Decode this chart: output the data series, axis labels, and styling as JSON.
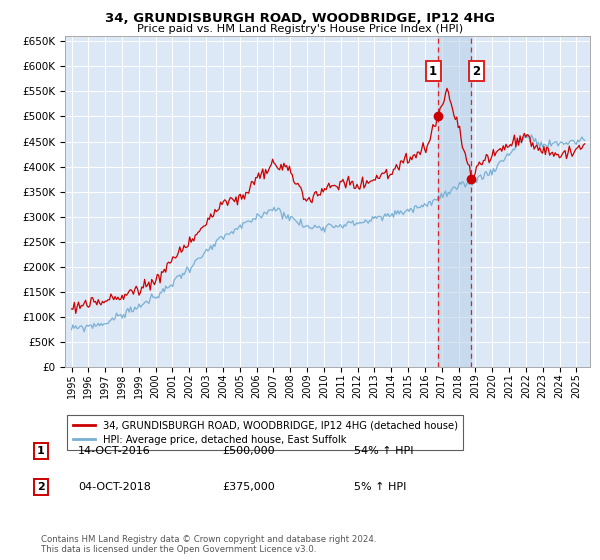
{
  "title1": "34, GRUNDISBURGH ROAD, WOODBRIDGE, IP12 4HG",
  "title2": "Price paid vs. HM Land Registry's House Price Index (HPI)",
  "ylim_max": 660000,
  "yticks": [
    0,
    50000,
    100000,
    150000,
    200000,
    250000,
    300000,
    350000,
    400000,
    450000,
    500000,
    550000,
    600000,
    650000
  ],
  "xlim_lo": 1994.6,
  "xlim_hi": 2025.8,
  "xtick_years": [
    1995,
    1996,
    1997,
    1998,
    1999,
    2000,
    2001,
    2002,
    2003,
    2004,
    2005,
    2006,
    2007,
    2008,
    2009,
    2010,
    2011,
    2012,
    2013,
    2014,
    2015,
    2016,
    2017,
    2018,
    2019,
    2020,
    2021,
    2022,
    2023,
    2024,
    2025
  ],
  "plot_bg": "#dce8f5",
  "fig_bg": "#ffffff",
  "grid_color": "#ffffff",
  "line_red": "#cc0000",
  "line_blue": "#7ab0d4",
  "sale1_x": 2016.79,
  "sale1_y": 500000,
  "sale2_x": 2018.75,
  "sale2_y": 375000,
  "vline_color": "#dd2222",
  "span_color": "#b8d0e8",
  "marker_color": "#cc0000",
  "ann1_num": "1",
  "ann1_date": "14-OCT-2016",
  "ann1_price": "£500,000",
  "ann1_pct": "54% ↑ HPI",
  "ann2_num": "2",
  "ann2_date": "04-OCT-2018",
  "ann2_price": "£375,000",
  "ann2_pct": "5% ↑ HPI",
  "legend1": "34, GRUNDISBURGH ROAD, WOODBRIDGE, IP12 4HG (detached house)",
  "legend2": "HPI: Average price, detached house, East Suffolk",
  "footer": "Contains HM Land Registry data © Crown copyright and database right 2024.\nThis data is licensed under the Open Government Licence v3.0."
}
